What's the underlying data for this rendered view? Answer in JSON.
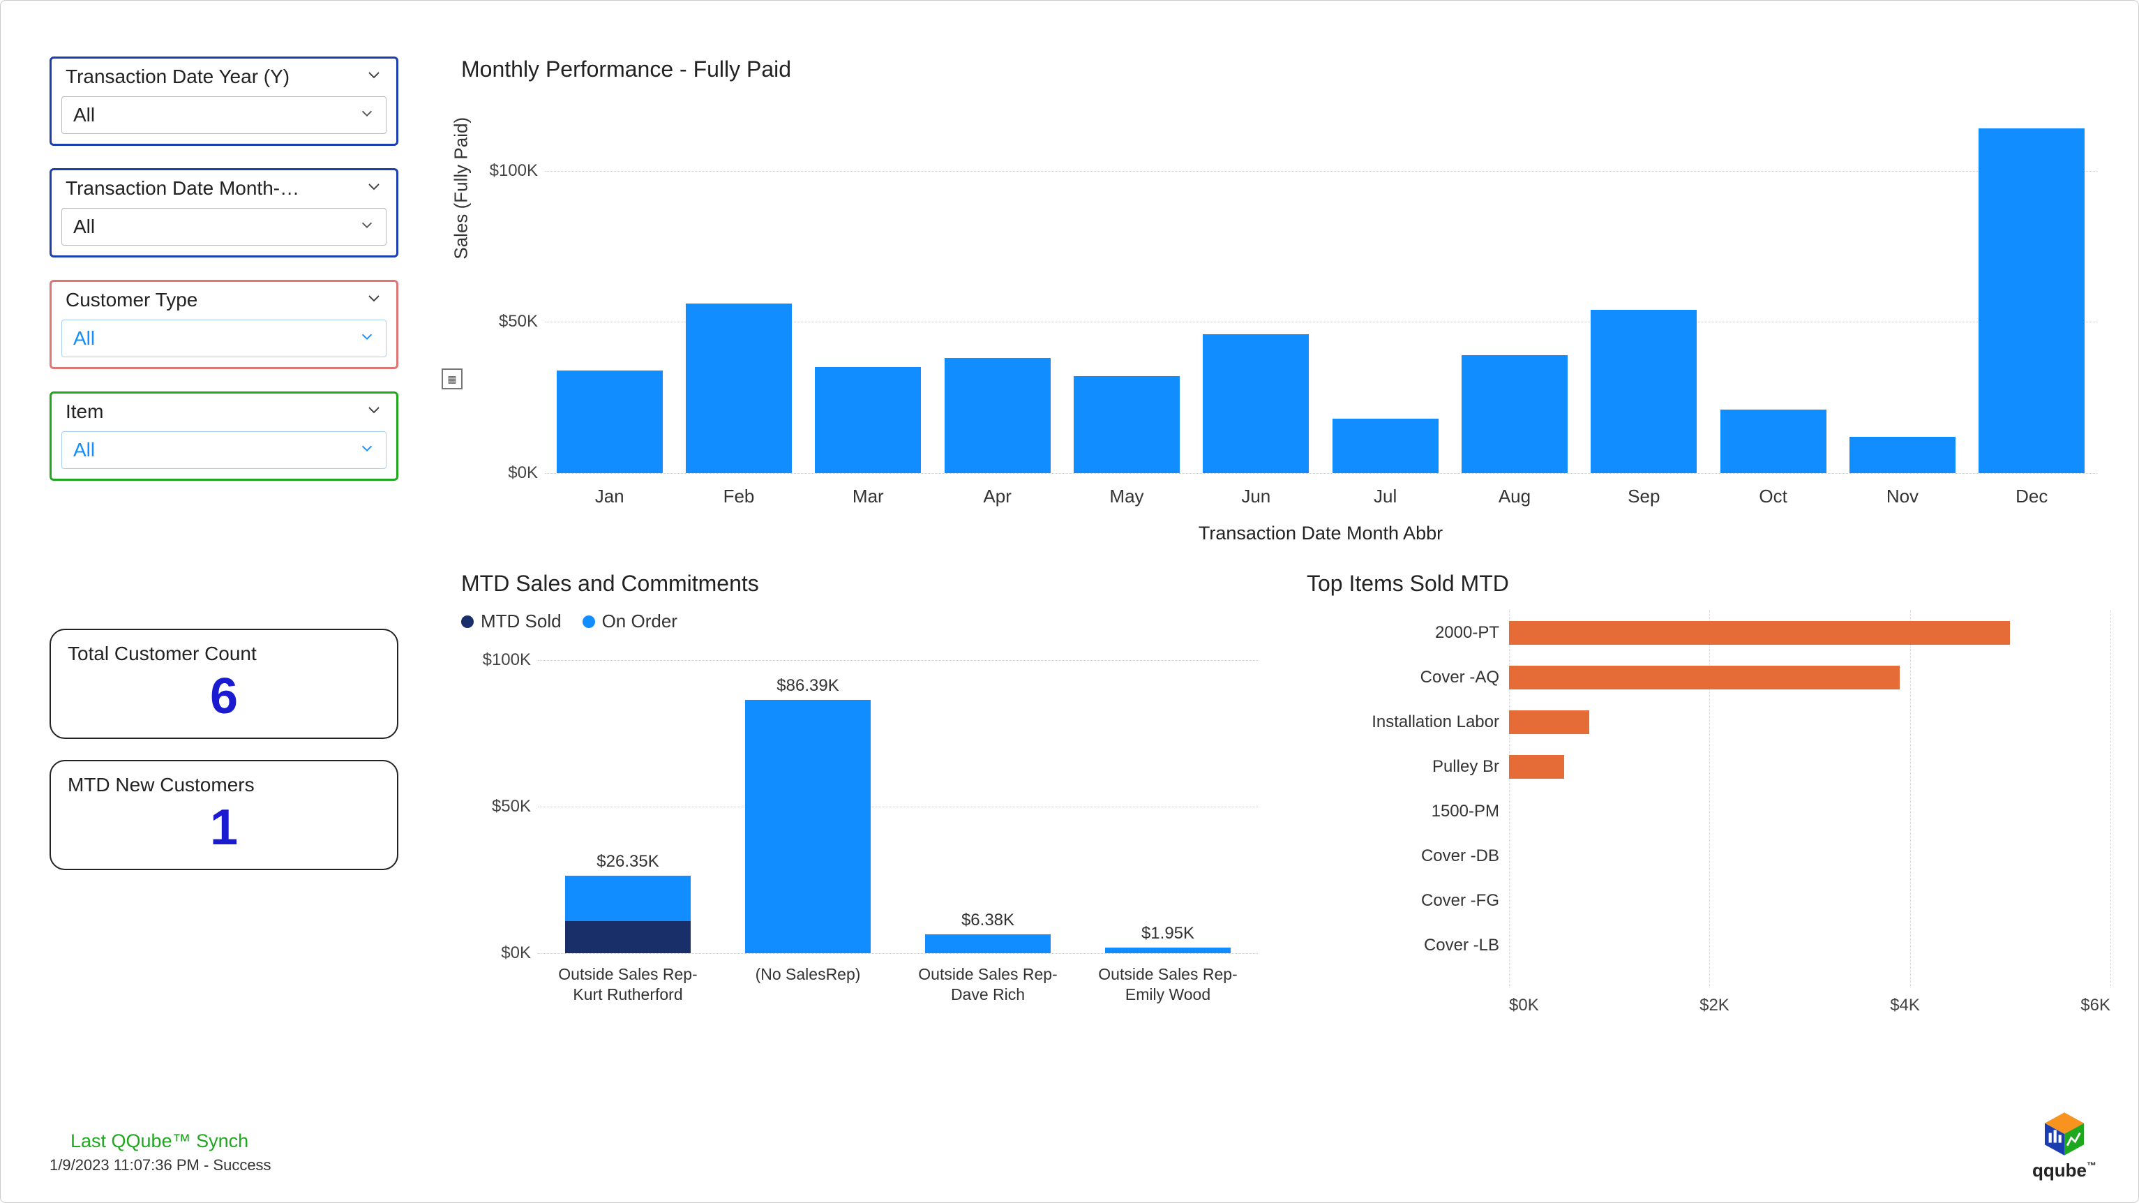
{
  "filters": [
    {
      "label": "Transaction Date Year (Y)",
      "value": "All",
      "style": "plain",
      "border": "filter-blue"
    },
    {
      "label": "Transaction Date Month-…",
      "value": "All",
      "style": "plain",
      "border": "filter-blue"
    },
    {
      "label": "Customer Type",
      "value": "All",
      "style": "blue-text",
      "border": "filter-red"
    },
    {
      "label": "Item",
      "value": "All",
      "style": "blue-text",
      "border": "filter-green"
    }
  ],
  "kpis": {
    "customer_count": {
      "label": "Total Customer Count",
      "value": "6"
    },
    "new_customers": {
      "label": "MTD New Customers",
      "value": "1"
    }
  },
  "sync": {
    "title": "Last QQube™ Synch",
    "text": "1/9/2023 11:07:36 PM - Success"
  },
  "monthly": {
    "title": "Monthly Performance - Fully Paid",
    "y_label": "Sales (Fully Paid)",
    "x_label": "Transaction Date Month Abbr",
    "y_max": 120000,
    "y_ticks": [
      {
        "v": 0,
        "label": "$0K"
      },
      {
        "v": 50000,
        "label": "$50K"
      },
      {
        "v": 100000,
        "label": "$100K"
      }
    ],
    "bars": [
      {
        "x": "Jan",
        "v": 34000
      },
      {
        "x": "Feb",
        "v": 56000
      },
      {
        "x": "Mar",
        "v": 35000
      },
      {
        "x": "Apr",
        "v": 38000
      },
      {
        "x": "May",
        "v": 32000
      },
      {
        "x": "Jun",
        "v": 46000
      },
      {
        "x": "Jul",
        "v": 18000
      },
      {
        "x": "Aug",
        "v": 39000
      },
      {
        "x": "Sep",
        "v": 54000
      },
      {
        "x": "Oct",
        "v": 21000
      },
      {
        "x": "Nov",
        "v": 12000
      },
      {
        "x": "Dec",
        "v": 114000
      }
    ],
    "bar_color": "#118DFF"
  },
  "mtd": {
    "title": "MTD Sales and Commitments",
    "legend": [
      {
        "label": "MTD Sold",
        "color": "#192f6a"
      },
      {
        "label": "On Order",
        "color": "#118DFF"
      }
    ],
    "y_max": 100000,
    "y_ticks": [
      {
        "v": 0,
        "label": "$0K"
      },
      {
        "v": 50000,
        "label": "$50K"
      },
      {
        "v": 100000,
        "label": "$100K"
      }
    ],
    "bars": [
      {
        "x": "Outside Sales Rep- Kurt Rutherford",
        "label": "$26.35K",
        "sold": 11000,
        "order": 15350
      },
      {
        "x": "(No SalesRep)",
        "label": "$86.39K",
        "sold": 0,
        "order": 86390
      },
      {
        "x": "Outside Sales Rep- Dave Rich",
        "label": "$6.38K",
        "sold": 0,
        "order": 6380
      },
      {
        "x": "Outside Sales Rep- Emily Wood",
        "label": "$1.95K",
        "sold": 0,
        "order": 1950
      }
    ]
  },
  "top_items": {
    "title": "Top Items Sold MTD",
    "x_max": 6000,
    "x_ticks": [
      "$0K",
      "$2K",
      "$4K",
      "$6K"
    ],
    "bar_color": "#e66c37",
    "rows": [
      {
        "label": "2000-PT",
        "v": 5000
      },
      {
        "label": "Cover -AQ",
        "v": 3900
      },
      {
        "label": "Installation Labor",
        "v": 800
      },
      {
        "label": "Pulley Br",
        "v": 550
      },
      {
        "label": "1500-PM",
        "v": 0
      },
      {
        "label": "Cover -DB",
        "v": 0
      },
      {
        "label": "Cover -FG",
        "v": 0
      },
      {
        "label": "Cover -LB",
        "v": 0
      }
    ]
  },
  "logo_text": "qqube"
}
